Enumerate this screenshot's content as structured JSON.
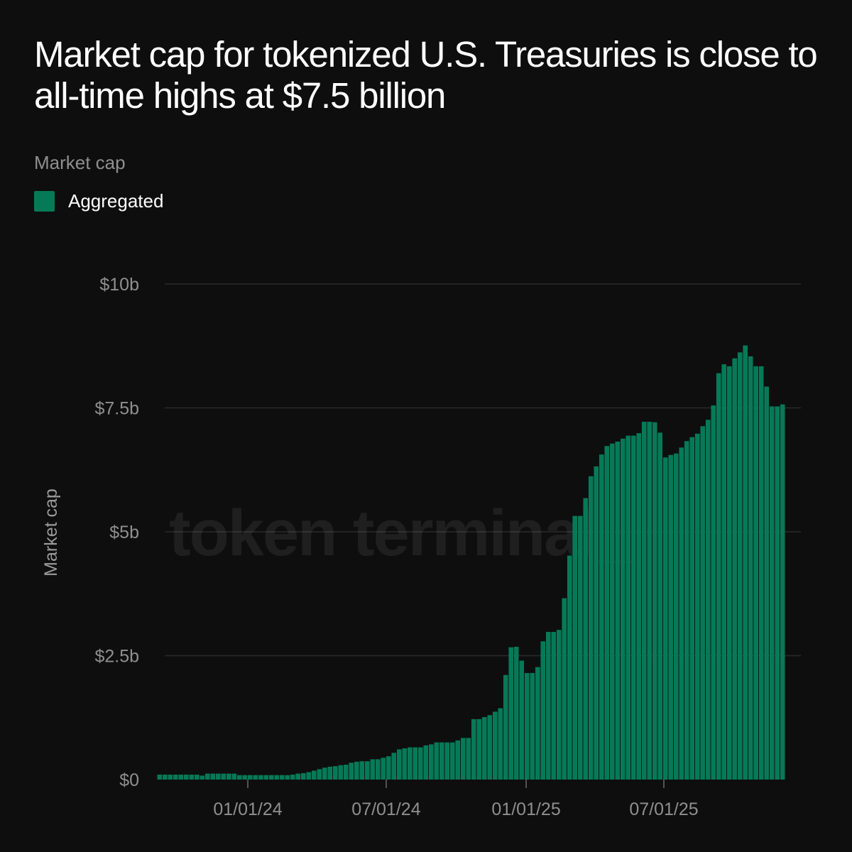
{
  "header": {
    "title": "Market cap for tokenized U.S. Treasuries is close to all-time highs at $7.5 billion",
    "subtitle": "Market cap"
  },
  "legend": {
    "label": "Aggregated",
    "color": "#067a57"
  },
  "watermark": "token terminal_",
  "chart_data": {
    "type": "bar",
    "ylabel": "Market cap",
    "xlabel": "",
    "ylim": [
      0,
      10
    ],
    "y_unit": "billion USD",
    "y_ticks": [
      0,
      2.5,
      5,
      7.5,
      10
    ],
    "y_tick_labels": [
      "$0",
      "$2.5b",
      "$5b",
      "$7.5b",
      "$10b"
    ],
    "x_ticks": [
      "2024-01-01",
      "2024-07-01",
      "2025-01-01",
      "2025-07-01"
    ],
    "x_tick_labels": [
      "01/01/24",
      "07/01/24",
      "01/01/25",
      "07/01/25"
    ],
    "grid": true,
    "legend_position": "top-left",
    "color": "#067a57",
    "series": [
      {
        "name": "Aggregated",
        "start_date": "2023-09-04",
        "interval_days": 7,
        "values": [
          0.1,
          0.1,
          0.1,
          0.1,
          0.1,
          0.1,
          0.1,
          0.1,
          0.08,
          0.12,
          0.12,
          0.12,
          0.12,
          0.12,
          0.12,
          0.09,
          0.09,
          0.09,
          0.09,
          0.09,
          0.09,
          0.09,
          0.09,
          0.09,
          0.09,
          0.1,
          0.12,
          0.13,
          0.15,
          0.18,
          0.21,
          0.24,
          0.26,
          0.27,
          0.29,
          0.3,
          0.34,
          0.36,
          0.37,
          0.37,
          0.41,
          0.41,
          0.44,
          0.47,
          0.54,
          0.61,
          0.63,
          0.65,
          0.65,
          0.65,
          0.69,
          0.71,
          0.75,
          0.75,
          0.75,
          0.75,
          0.79,
          0.84,
          0.84,
          1.22,
          1.22,
          1.26,
          1.3,
          1.37,
          1.44,
          2.11,
          2.67,
          2.68,
          2.4,
          2.15,
          2.15,
          2.27,
          2.79,
          2.98,
          2.98,
          3.02,
          3.66,
          4.52,
          5.32,
          5.32,
          5.68,
          6.12,
          6.32,
          6.56,
          6.73,
          6.78,
          6.82,
          6.88,
          6.94,
          6.94,
          6.99,
          7.22,
          7.22,
          7.21,
          7.0,
          6.5,
          6.55,
          6.58,
          6.7,
          6.83,
          6.91,
          6.98,
          7.13,
          7.26,
          7.55,
          8.2,
          8.38,
          8.34,
          8.5,
          8.62,
          8.76,
          8.54,
          8.34,
          8.34,
          7.93,
          7.53,
          7.53,
          7.57
        ]
      }
    ]
  }
}
